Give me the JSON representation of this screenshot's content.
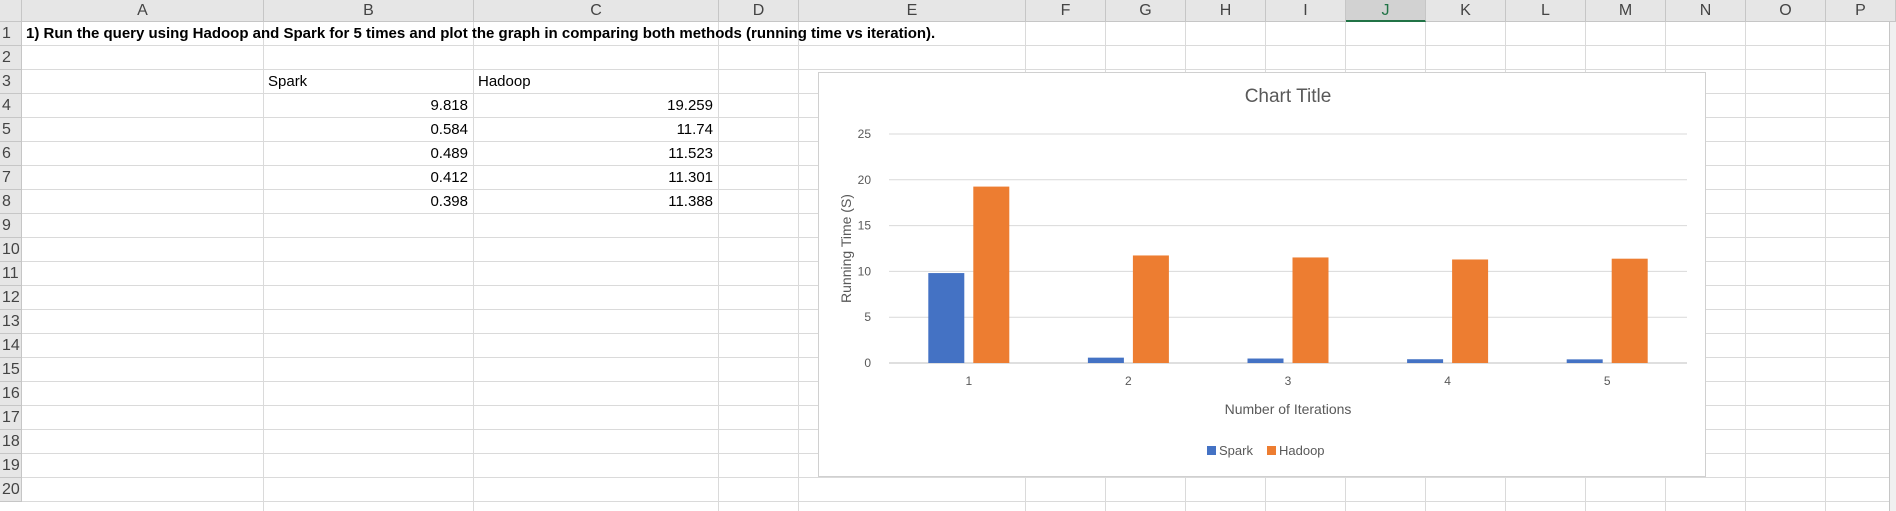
{
  "columns": [
    "A",
    "B",
    "C",
    "D",
    "E",
    "F",
    "G",
    "H",
    "I",
    "J",
    "K",
    "L",
    "M",
    "N",
    "O",
    "P"
  ],
  "selected_column": "J",
  "rows": [
    "1",
    "2",
    "3",
    "4",
    "5",
    "6",
    "7",
    "8",
    "9",
    "10",
    "11",
    "12",
    "13",
    "14",
    "15",
    "16",
    "17",
    "18",
    "19",
    "20"
  ],
  "cells": {
    "a1": "1) Run the query using Hadoop and Spark for 5 times and plot the graph in comparing both methods (running time vs iteration).",
    "b3": "Spark",
    "c3": "Hadoop",
    "b4": "9.818",
    "c4": "19.259",
    "b5": "0.584",
    "c5": "11.74",
    "b6": "0.489",
    "c6": "11.523",
    "b7": "0.412",
    "c7": "11.301",
    "b8": "0.398",
    "c8": "11.388"
  },
  "chart_data": {
    "type": "bar",
    "title": "Chart Title",
    "xlabel": "Number of Iterations",
    "ylabel": "Running Time (S)",
    "categories": [
      "1",
      "2",
      "3",
      "4",
      "5"
    ],
    "series": [
      {
        "name": "Spark",
        "values": [
          9.818,
          0.584,
          0.489,
          0.412,
          0.398
        ],
        "color": "#4472c4"
      },
      {
        "name": "Hadoop",
        "values": [
          19.259,
          11.74,
          11.523,
          11.301,
          11.388
        ],
        "color": "#ed7d31"
      }
    ],
    "ylim": [
      0,
      25
    ],
    "yticks": [
      "0",
      "5",
      "10",
      "15",
      "20",
      "25"
    ],
    "grid": true,
    "legend": "bottom"
  }
}
